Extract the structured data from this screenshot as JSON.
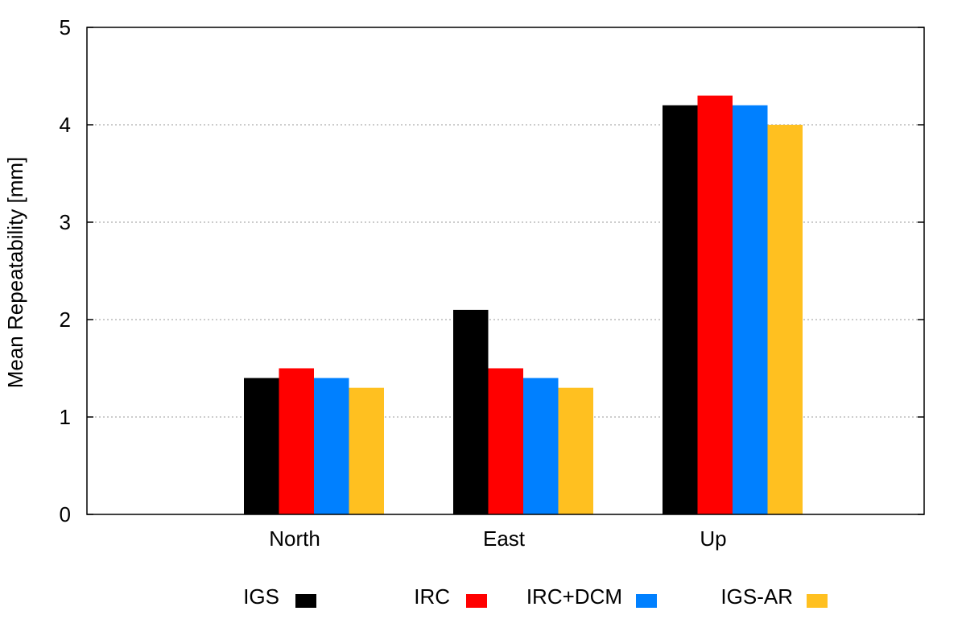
{
  "chart_data": {
    "type": "bar",
    "categories": [
      "North",
      "East",
      "Up"
    ],
    "series": [
      {
        "name": "IGS",
        "color": "#000000",
        "values": [
          1.4,
          2.1,
          4.2
        ]
      },
      {
        "name": "IRC",
        "color": "#ff0000",
        "values": [
          1.5,
          1.5,
          4.3
        ]
      },
      {
        "name": "IRC+DCM",
        "color": "#0080ff",
        "values": [
          1.4,
          1.4,
          4.2
        ]
      },
      {
        "name": "IGS-AR",
        "color": "#ffc020",
        "values": [
          1.3,
          1.3,
          4.0
        ]
      }
    ],
    "ylabel": "Mean Repeatability [mm]",
    "xlabel": "",
    "ylim": [
      0,
      5
    ],
    "yticks": [
      0,
      1,
      2,
      3,
      4,
      5
    ],
    "grid": "horizontal dotted",
    "legend_position": "bottom"
  }
}
